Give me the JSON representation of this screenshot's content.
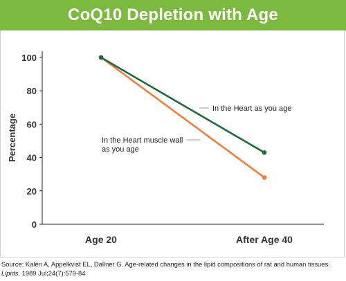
{
  "colors": {
    "title_bg": "#7cba3f",
    "heart_line": "#1e6b3a",
    "muscle_line": "#f07f3c",
    "axis": "#222222"
  },
  "chart_data": {
    "type": "line",
    "title": "CoQ10 Depletion with Age",
    "xlabel": "",
    "ylabel": "Percentage",
    "categories": [
      "Age 20",
      "After Age 40"
    ],
    "ylim": [
      0,
      100
    ],
    "yticks": [
      0,
      20,
      40,
      60,
      80,
      100
    ],
    "grid": false,
    "series": [
      {
        "name": "In the Heart as you age",
        "values": [
          100,
          43
        ],
        "color": "#1e6b3a"
      },
      {
        "name": "In the Heart muscle wall as you age",
        "values": [
          100,
          28
        ],
        "color": "#f07f3c"
      }
    ],
    "annotations": [
      {
        "series": 0,
        "lines": [
          "In the Heart as you age"
        ]
      },
      {
        "series": 1,
        "lines": [
          "In the Heart muscle wall",
          "as you age"
        ]
      }
    ]
  },
  "source": {
    "prefix": "Source: Kalén A, Appelkvist EL, Dallner G. Age-related changes in the lipid compositions of rat and human tissues. ",
    "journal": "Lipids",
    "suffix": ". 1989 Jul;24(7):579-84"
  }
}
